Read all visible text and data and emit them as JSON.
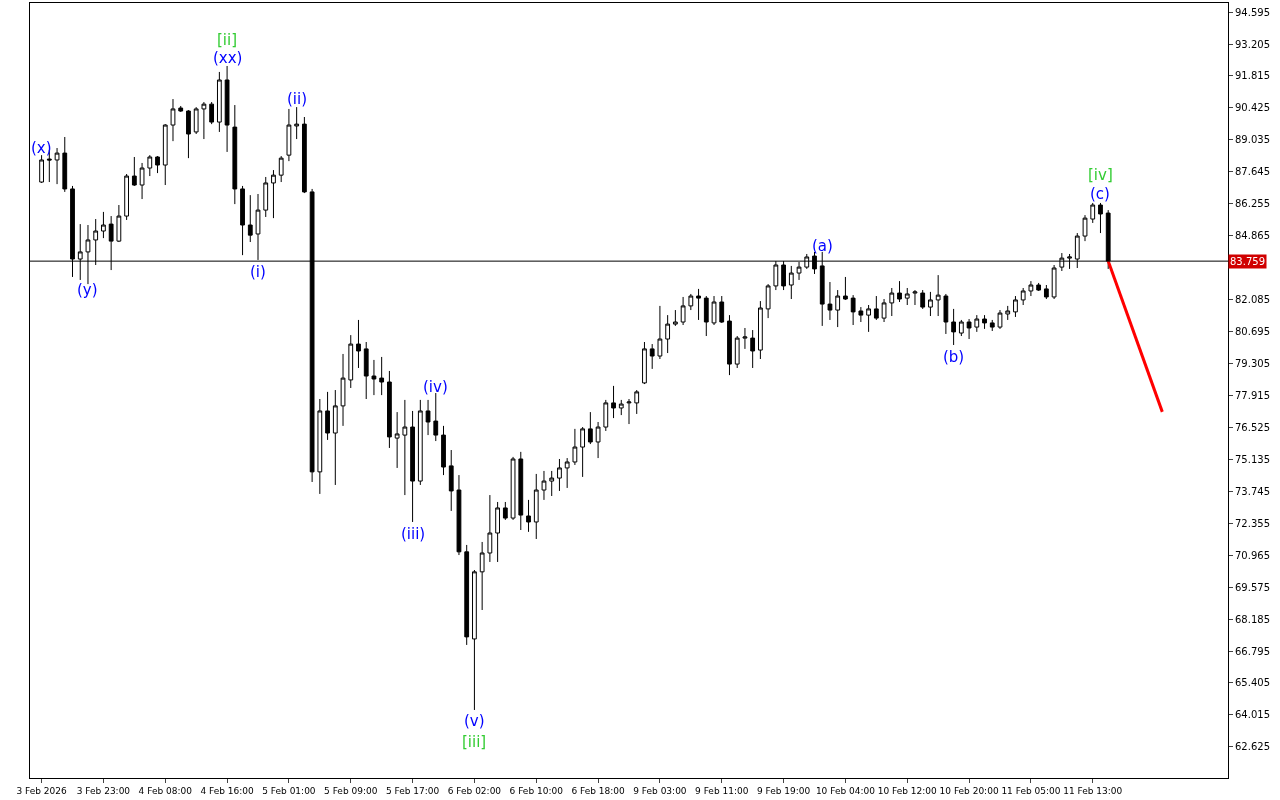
{
  "chart_data": {
    "type": "candlestick",
    "color": "#000000",
    "categories": [
      "3 Feb 2026",
      null,
      null,
      null,
      null,
      null,
      null,
      null,
      "3 Feb 23:00",
      null,
      null,
      null,
      null,
      null,
      null,
      null,
      "4 Feb 08:00",
      null,
      null,
      null,
      null,
      null,
      null,
      null,
      "4 Feb 16:00",
      null,
      null,
      null,
      null,
      null,
      null,
      null,
      "5 Feb 01:00",
      null,
      null,
      null,
      null,
      null,
      null,
      null,
      "5 Feb 09:00",
      null,
      null,
      null,
      null,
      null,
      null,
      null,
      "5 Feb 17:00",
      null,
      null,
      null,
      null,
      null,
      null,
      null,
      "6 Feb 02:00",
      null,
      null,
      null,
      null,
      null,
      null,
      null,
      "6 Feb 10:00",
      null,
      null,
      null,
      null,
      null,
      null,
      null,
      "6 Feb 18:00",
      null,
      null,
      null,
      null,
      null,
      null,
      null,
      "9 Feb 03:00",
      null,
      null,
      null,
      null,
      null,
      null,
      null,
      "9 Feb 11:00",
      null,
      null,
      null,
      null,
      null,
      null,
      null,
      "9 Feb 19:00",
      null,
      null,
      null,
      null,
      null,
      null,
      null,
      "10 Feb 04:00",
      null,
      null,
      null,
      null,
      null,
      null,
      null,
      "10 Feb 12:00",
      null,
      null,
      null,
      null,
      null,
      null,
      null,
      "10 Feb 20:00",
      null,
      null,
      null,
      null,
      null,
      null,
      null,
      "11 Feb 05:00",
      null,
      null,
      null,
      null,
      null,
      null,
      null,
      "11 Feb 13:00",
      null,
      null,
      null,
      null,
      null,
      null,
      null,
      null,
      null,
      null,
      null,
      null,
      null,
      null,
      null,
      null,
      null
    ],
    "ohlc": [
      [
        87.2,
        88.37,
        87.16,
        88.16
      ],
      [
        88.2,
        88.59,
        87.2,
        88.16
      ],
      [
        88.16,
        88.68,
        87.11,
        88.46
      ],
      [
        88.46,
        89.16,
        86.77,
        86.9
      ],
      [
        86.9,
        87.03,
        83.07,
        83.85
      ],
      [
        83.85,
        85.37,
        82.94,
        84.16
      ],
      [
        84.16,
        85.33,
        82.76,
        84.68
      ],
      [
        84.68,
        85.59,
        83.59,
        85.07
      ],
      [
        85.07,
        85.9,
        84.76,
        85.33
      ],
      [
        85.37,
        85.72,
        83.37,
        84.63
      ],
      [
        84.63,
        86.2,
        84.59,
        85.72
      ],
      [
        85.72,
        87.55,
        85.55,
        87.46
      ],
      [
        87.46,
        88.29,
        87.03,
        87.07
      ],
      [
        87.07,
        88.03,
        86.46,
        87.81
      ],
      [
        87.81,
        88.37,
        87.46,
        88.29
      ],
      [
        88.29,
        88.33,
        87.59,
        87.94
      ],
      [
        87.94,
        89.72,
        87.07,
        89.68
      ],
      [
        89.68,
        90.81,
        88.98,
        90.38
      ],
      [
        90.42,
        90.51,
        90.25,
        90.29
      ],
      [
        90.29,
        90.33,
        88.24,
        89.29
      ],
      [
        89.38,
        90.46,
        89.29,
        90.38
      ],
      [
        90.38,
        90.68,
        89.07,
        90.59
      ],
      [
        90.59,
        90.68,
        89.72,
        89.81
      ],
      [
        89.81,
        91.99,
        89.38,
        91.64
      ],
      [
        91.64,
        92.25,
        88.51,
        89.68
      ],
      [
        89.59,
        90.55,
        86.24,
        86.9
      ],
      [
        86.9,
        87.03,
        84.02,
        85.33
      ],
      [
        85.33,
        86.63,
        84.59,
        84.89
      ],
      [
        84.94,
        86.68,
        83.81,
        85.98
      ],
      [
        85.98,
        87.42,
        85.68,
        87.16
      ],
      [
        87.16,
        87.72,
        85.63,
        87.5
      ],
      [
        87.5,
        88.33,
        87.2,
        88.24
      ],
      [
        88.37,
        90.38,
        88.11,
        89.68
      ],
      [
        89.64,
        90.46,
        89.07,
        89.72
      ],
      [
        89.72,
        90.03,
        86.72,
        86.77
      ],
      [
        86.77,
        86.9,
        74.15,
        74.59
      ],
      [
        74.59,
        77.76,
        73.63,
        77.24
      ],
      [
        77.24,
        78.07,
        75.98,
        76.28
      ],
      [
        76.28,
        78.15,
        74.02,
        77.46
      ],
      [
        77.46,
        79.72,
        76.59,
        78.67
      ],
      [
        78.59,
        80.54,
        78.24,
        80.15
      ],
      [
        80.15,
        81.2,
        79.11,
        79.85
      ],
      [
        79.94,
        80.24,
        77.76,
        78.76
      ],
      [
        78.76,
        79.46,
        77.93,
        78.63
      ],
      [
        78.67,
        79.59,
        77.93,
        78.5
      ],
      [
        78.5,
        78.98,
        75.63,
        76.11
      ],
      [
        76.06,
        77.19,
        74.76,
        76.24
      ],
      [
        76.19,
        77.72,
        73.58,
        76.54
      ],
      [
        76.54,
        77.24,
        72.41,
        74.19
      ],
      [
        74.19,
        77.72,
        74.02,
        77.24
      ],
      [
        77.24,
        77.72,
        76.19,
        76.76
      ],
      [
        76.8,
        78.02,
        75.93,
        76.19
      ],
      [
        76.19,
        76.59,
        74.45,
        74.8
      ],
      [
        74.85,
        75.54,
        72.89,
        73.76
      ],
      [
        73.8,
        74.45,
        70.97,
        71.11
      ],
      [
        71.11,
        71.41,
        67.06,
        67.41
      ],
      [
        67.32,
        70.32,
        64.23,
        70.24
      ],
      [
        70.24,
        71.54,
        68.58,
        71.06
      ],
      [
        71.06,
        73.58,
        70.67,
        71.93
      ],
      [
        71.93,
        73.28,
        70.67,
        73.02
      ],
      [
        73.02,
        73.28,
        72.5,
        72.58
      ],
      [
        72.58,
        75.24,
        72.5,
        75.15
      ],
      [
        75.15,
        75.46,
        72.06,
        72.71
      ],
      [
        72.67,
        73.37,
        71.98,
        72.41
      ],
      [
        72.41,
        74.5,
        71.67,
        73.8
      ],
      [
        73.8,
        74.63,
        73.37,
        74.19
      ],
      [
        74.19,
        74.63,
        73.54,
        74.32
      ],
      [
        74.32,
        75.15,
        73.76,
        74.76
      ],
      [
        74.76,
        75.19,
        73.89,
        75.02
      ],
      [
        75.02,
        76.46,
        74.89,
        75.67
      ],
      [
        75.67,
        76.54,
        74.37,
        76.46
      ],
      [
        76.46,
        77.19,
        75.8,
        75.89
      ],
      [
        75.89,
        76.76,
        75.19,
        76.54
      ],
      [
        76.54,
        77.72,
        76.37,
        77.59
      ],
      [
        77.59,
        78.33,
        76.93,
        77.37
      ],
      [
        77.37,
        77.72,
        77.06,
        77.54
      ],
      [
        77.59,
        77.76,
        76.67,
        77.63
      ],
      [
        77.59,
        78.15,
        77.11,
        78.07
      ],
      [
        78.46,
        80.24,
        78.41,
        79.94
      ],
      [
        79.94,
        80.15,
        79.07,
        79.63
      ],
      [
        79.63,
        81.81,
        79.5,
        80.37
      ],
      [
        80.37,
        81.41,
        79.76,
        81.02
      ],
      [
        81.02,
        81.63,
        80.94,
        81.11
      ],
      [
        81.11,
        82.2,
        80.98,
        81.81
      ],
      [
        81.81,
        82.33,
        81.63,
        82.24
      ],
      [
        82.24,
        82.55,
        81.2,
        82.15
      ],
      [
        82.15,
        82.24,
        80.5,
        81.11
      ],
      [
        81.07,
        82.24,
        80.98,
        81.98
      ],
      [
        81.98,
        82.24,
        81.07,
        81.11
      ],
      [
        81.15,
        81.41,
        78.8,
        79.28
      ],
      [
        79.28,
        80.5,
        79.11,
        80.41
      ],
      [
        80.41,
        80.85,
        79.94,
        80.46
      ],
      [
        80.41,
        80.76,
        79.11,
        79.85
      ],
      [
        79.89,
        82.02,
        79.5,
        81.72
      ],
      [
        81.68,
        82.76,
        81.28,
        82.68
      ],
      [
        82.68,
        83.76,
        82.5,
        83.59
      ],
      [
        83.59,
        83.76,
        82.5,
        82.68
      ],
      [
        82.72,
        83.55,
        82.11,
        83.24
      ],
      [
        83.24,
        83.72,
        82.94,
        83.5
      ],
      [
        83.5,
        84.07,
        83.42,
        83.94
      ],
      [
        83.98,
        84.16,
        83.2,
        83.42
      ],
      [
        83.55,
        84.16,
        80.94,
        81.89
      ],
      [
        81.89,
        82.85,
        81.2,
        81.63
      ],
      [
        81.63,
        82.5,
        80.89,
        82.24
      ],
      [
        82.24,
        83.07,
        82.07,
        82.11
      ],
      [
        82.15,
        82.28,
        80.98,
        81.55
      ],
      [
        81.59,
        81.76,
        81.11,
        81.41
      ],
      [
        81.41,
        81.85,
        80.68,
        81.68
      ],
      [
        81.68,
        82.24,
        81.2,
        81.28
      ],
      [
        81.28,
        82.11,
        81.11,
        81.94
      ],
      [
        81.94,
        82.59,
        81.37,
        82.37
      ],
      [
        82.37,
        82.89,
        81.98,
        82.11
      ],
      [
        82.15,
        82.59,
        81.85,
        82.33
      ],
      [
        82.37,
        82.5,
        81.85,
        82.42
      ],
      [
        82.37,
        82.5,
        81.68,
        81.76
      ],
      [
        81.76,
        82.42,
        81.37,
        82.07
      ],
      [
        82.07,
        83.15,
        81.37,
        82.28
      ],
      [
        82.24,
        82.33,
        80.59,
        81.11
      ],
      [
        81.11,
        81.68,
        80.11,
        80.68
      ],
      [
        80.63,
        81.2,
        80.5,
        81.11
      ],
      [
        81.11,
        81.24,
        80.37,
        80.85
      ],
      [
        80.89,
        81.41,
        80.68,
        81.24
      ],
      [
        81.24,
        81.41,
        80.81,
        81.07
      ],
      [
        81.07,
        81.2,
        80.72,
        80.89
      ],
      [
        80.89,
        81.63,
        80.81,
        81.5
      ],
      [
        81.46,
        81.81,
        81.2,
        81.59
      ],
      [
        81.55,
        82.24,
        81.33,
        82.07
      ],
      [
        82.07,
        82.59,
        81.85,
        82.46
      ],
      [
        82.46,
        82.89,
        82.24,
        82.72
      ],
      [
        82.72,
        82.81,
        82.46,
        82.5
      ],
      [
        82.55,
        82.72,
        82.11,
        82.2
      ],
      [
        82.2,
        83.59,
        82.11,
        83.46
      ],
      [
        83.5,
        84.11,
        83.33,
        83.89
      ],
      [
        83.89,
        84.07,
        83.42,
        83.94
      ],
      [
        83.85,
        84.98,
        83.46,
        84.85
      ],
      [
        84.85,
        85.76,
        84.63,
        85.63
      ],
      [
        85.59,
        86.29,
        85.42,
        86.2
      ],
      [
        86.2,
        86.29,
        84.98,
        85.81
      ],
      [
        85.85,
        85.98,
        83.42,
        83.76
      ],
      null,
      null,
      null,
      null,
      null,
      null,
      null,
      null,
      null,
      null,
      null,
      null,
      null,
      null,
      null
    ],
    "series": [
      {
        "type": "line",
        "color": "#ff0000",
        "values": [
          null,
          null,
          null,
          null,
          null,
          null,
          null,
          null,
          null,
          null,
          null,
          null,
          null,
          null,
          null,
          null,
          null,
          null,
          null,
          null,
          null,
          null,
          null,
          null,
          null,
          null,
          null,
          null,
          null,
          null,
          null,
          null,
          null,
          null,
          null,
          null,
          null,
          null,
          null,
          null,
          null,
          null,
          null,
          null,
          null,
          null,
          null,
          null,
          null,
          null,
          null,
          null,
          null,
          null,
          null,
          null,
          null,
          null,
          null,
          null,
          null,
          null,
          null,
          null,
          null,
          null,
          null,
          null,
          null,
          null,
          null,
          null,
          null,
          null,
          null,
          null,
          null,
          null,
          null,
          null,
          null,
          null,
          null,
          null,
          null,
          null,
          null,
          null,
          null,
          null,
          null,
          null,
          null,
          null,
          null,
          null,
          null,
          null,
          null,
          null,
          null,
          null,
          null,
          null,
          null,
          null,
          null,
          null,
          null,
          null,
          null,
          null,
          null,
          null,
          null,
          null,
          null,
          null,
          null,
          null,
          null,
          null,
          null,
          null,
          null,
          null,
          null,
          null,
          null,
          null,
          null,
          null,
          null,
          null,
          null,
          null,
          null,
          null,
          83.76,
          null,
          null,
          null,
          null,
          null,
          null,
          77.2,
          null,
          null,
          null,
          null,
          null,
          null,
          null,
          null
        ]
      }
    ],
    "annotations": [
      "(x)",
      "(y)",
      "[ii]",
      "(xx)",
      "(i)",
      "(ii)",
      "(iii)",
      "(iv)",
      "(v)",
      "[iii]",
      "(a)",
      "(b)",
      "(c)",
      "[iv]"
    ],
    "ylim": [
      61.27,
      94.99
    ],
    "yticks": [
      94.595,
      93.205,
      91.815,
      90.425,
      89.035,
      87.645,
      86.255,
      84.865,
      82.085,
      80.695,
      79.305,
      77.915,
      76.525,
      75.135,
      73.745,
      72.355,
      70.965,
      69.575,
      68.185,
      66.795,
      65.405,
      64.015,
      62.625
    ],
    "ref_lines": [
      {
        "axis": "y",
        "value": 83.759,
        "label": "83.759",
        "color": "#000000"
      }
    ]
  }
}
